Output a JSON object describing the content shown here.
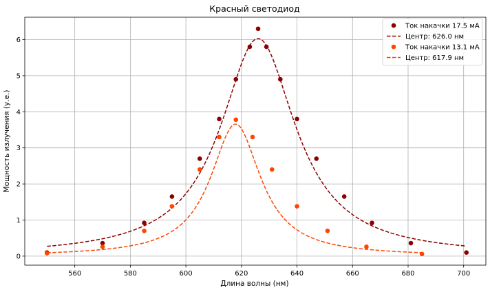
{
  "chart_data": {
    "type": "scatter",
    "title": "Красный светодиод",
    "xlabel": "Длина волны (нм)",
    "ylabel": "Мощность излучения (у.е.)",
    "xlim": [
      542,
      708
    ],
    "ylim": [
      -0.25,
      6.62
    ],
    "xticks": [
      560,
      580,
      600,
      620,
      640,
      660,
      680,
      700
    ],
    "yticks": [
      0,
      1,
      2,
      3,
      4,
      5,
      6
    ],
    "grid": true,
    "legend_position": "top-right",
    "series": [
      {
        "name": "Ток накачки 17.5 мА",
        "kind": "points",
        "color": "#8b0000",
        "x": [
          550,
          570,
          585,
          595,
          605,
          612,
          618,
          623,
          626,
          629,
          634,
          640,
          647,
          657,
          667,
          681,
          701
        ],
        "y": [
          0.1,
          0.36,
          0.92,
          1.65,
          2.7,
          3.8,
          4.9,
          5.8,
          6.3,
          5.8,
          4.9,
          3.8,
          2.7,
          1.65,
          0.92,
          0.36,
          0.1
        ]
      },
      {
        "name": "Центр: 626.0 нм",
        "kind": "fit",
        "color": "#8b0000",
        "center": 626.0,
        "amplitude": 6.03,
        "hwhm": 16.5,
        "x_range": [
          550,
          701
        ]
      },
      {
        "name": "Ток накачки 13.1 мА",
        "kind": "points",
        "color": "#ff4500",
        "x": [
          550,
          570,
          585,
          595,
          605,
          612,
          618,
          624,
          631,
          640,
          651,
          665,
          685
        ],
        "y": [
          0.08,
          0.26,
          0.7,
          1.38,
          2.4,
          3.3,
          3.78,
          3.3,
          2.4,
          1.38,
          0.7,
          0.26,
          0.06
        ]
      },
      {
        "name": "Центр: 617.9 нм",
        "kind": "fit",
        "color": "#ff4500",
        "center": 617.9,
        "amplitude": 3.66,
        "hwhm": 11.0,
        "x_range": [
          550,
          685
        ]
      }
    ]
  }
}
